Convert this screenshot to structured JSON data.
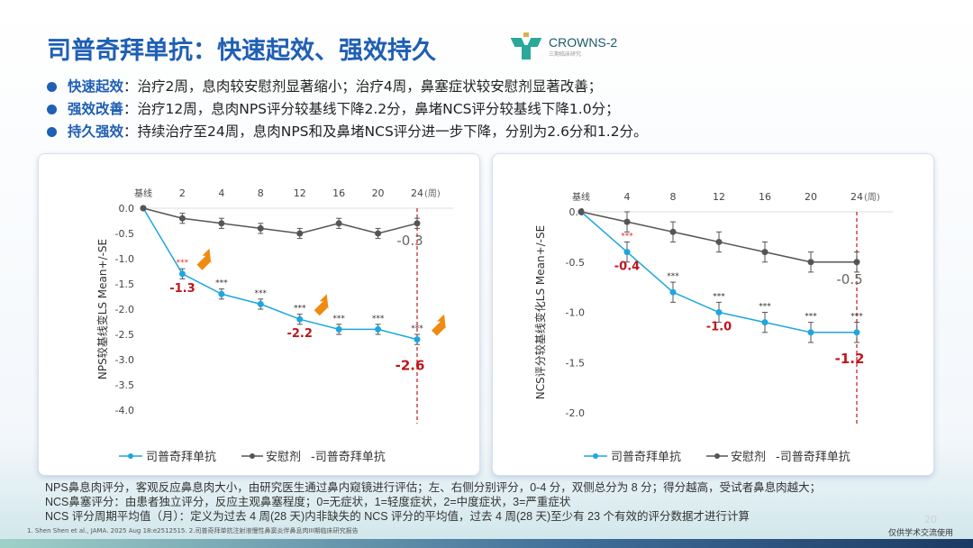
{
  "title": "司普奇拜单抗：快速起效、强效持久",
  "logo": {
    "text": "CROWNS-2",
    "sub": "三期临床研究"
  },
  "bullets": [
    {
      "key": "快速起效",
      "text": "：治疗2周，息肉较安慰剂显著缩小；治疗4周，鼻塞症状较安慰剂显著改善；"
    },
    {
      "key": "强效改善",
      "text": "：治疗12周，息肉NPS评分较基线下降2.2分，鼻堵NCS评分较基线下降1.0分；"
    },
    {
      "key": "持久强效",
      "text": "：持续治疗至24周，息肉NPS和及鼻堵NCS评分进一步下降，分别为2.6分和1.2分。"
    }
  ],
  "colors": {
    "drug": "#1ea6e0",
    "placebo": "#555555",
    "highlight": "#c0161c",
    "accent": "#1f5fb4"
  },
  "chart_data": [
    {
      "type": "line",
      "ylabel": "NPS较基线变LS Mean+/-SE",
      "categories": [
        "基线",
        "2",
        "4",
        "8",
        "12",
        "16",
        "20",
        "24"
      ],
      "x_unit": "(周)",
      "ylim": [
        -4.0,
        0.0
      ],
      "yticks": [
        "0.0",
        "-0.5",
        "-1.0",
        "-1.5",
        "-2.0",
        "-2.5",
        "-3.0",
        "-3.5",
        "-4.0"
      ],
      "series": [
        {
          "name": "司普奇拜单抗",
          "values": [
            0,
            -1.3,
            -1.7,
            -1.9,
            -2.2,
            -2.4,
            -2.4,
            -2.6
          ],
          "se": 0.1
        },
        {
          "name": "安慰剂 -司普奇拜单抗",
          "values": [
            0,
            -0.2,
            -0.3,
            -0.4,
            -0.5,
            -0.3,
            -0.5,
            -0.3
          ],
          "se": 0.1
        }
      ],
      "significance": [
        "",
        "***",
        "***",
        "***",
        "***",
        "***",
        "***",
        "***"
      ],
      "labels": [
        {
          "text": "-1.3",
          "index": 1
        },
        {
          "text": "-2.2",
          "index": 4
        },
        {
          "text": "-2.6",
          "index": 7
        }
      ],
      "placebo_label": "-0.3",
      "arrows_at": [
        1,
        4,
        7
      ]
    },
    {
      "type": "line",
      "ylabel": "NCS评分较基线变化LS Mean+/-SE",
      "categories": [
        "基线",
        "4",
        "8",
        "12",
        "16",
        "20",
        "24"
      ],
      "x_unit": "(周)",
      "ylim": [
        -2.0,
        0.0
      ],
      "yticks": [
        "0.0",
        "-0.5",
        "-1.0",
        "-1.5",
        "-2.0"
      ],
      "series": [
        {
          "name": "司普奇拜单抗",
          "values": [
            0,
            -0.4,
            -0.8,
            -1.0,
            -1.1,
            -1.2,
            -1.2
          ],
          "se": 0.1
        },
        {
          "name": "安慰剂 -司普奇拜单抗",
          "values": [
            0,
            -0.1,
            -0.2,
            -0.3,
            -0.4,
            -0.5,
            -0.5
          ],
          "se": 0.1
        }
      ],
      "significance": [
        "",
        "***",
        "***",
        "***",
        "***",
        "***",
        "***"
      ],
      "labels": [
        {
          "text": "-0.4",
          "index": 1
        },
        {
          "text": "-1.0",
          "index": 3
        },
        {
          "text": "-1.2",
          "index": 6
        }
      ],
      "placebo_label": "-0.5",
      "arrows_at": []
    }
  ],
  "legend": {
    "drug": "司普奇拜单抗",
    "placebo": "安慰剂",
    "placebo_suffix": "-司普奇拜单抗"
  },
  "footnotes": [
    "NPS鼻息肉评分，客观反应鼻息肉大小，由研究医生通过鼻内窥镜进行评估；左、右侧分别评分，0-4 分，双侧总分为 8 分；得分越高，受试者鼻息肉越大；",
    "NCS鼻塞评分：由患者独立评分，反应主观鼻塞程度；0=无症状，1=轻度症状，2=中度症状，3=严重症状",
    "NCS 评分周期平均值（月）：定义为过去 4 周(28 天)内非缺失的 NCS 评分的平均值，过去 4 周(28 天)至少有 23 个有效的评分数据才进行计算"
  ],
  "reference": "1. Shen Shen et al., JAMA. 2025 Aug 18:e2512515. 2.司普奇拜单抗注射液慢性鼻窦炎伴鼻息肉III期临床研究报告",
  "note": "仅供学术交流使用",
  "page_number": "20"
}
